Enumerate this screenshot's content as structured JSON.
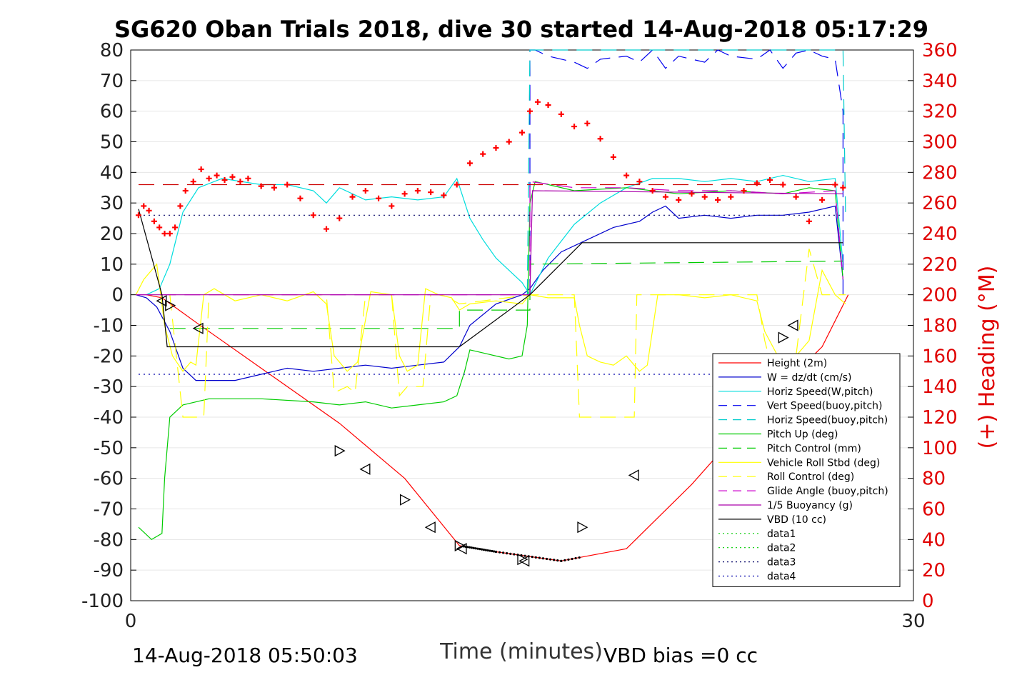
{
  "chart_data": {
    "type": "line",
    "title": "SG620 Oban Trials 2018, dive 30 started 14-Aug-2018 05:17:29",
    "xlabel": "Time (minutes)",
    "ylabel_right": "(+) Heading (°M)",
    "footer_left": "14-Aug-2018 05:50:03",
    "footer_right": "VBD bias =0 cc",
    "xlim": [
      0,
      30
    ],
    "ylim": [
      -100,
      80
    ],
    "ylim_right": [
      0,
      360
    ],
    "x_ticks": [
      "0",
      "30"
    ],
    "y_ticks": [
      "80",
      "70",
      "60",
      "50",
      "40",
      "30",
      "20",
      "10",
      "0",
      "-10",
      "-20",
      "-30",
      "-40",
      "-50",
      "-60",
      "-70",
      "-80",
      "-90",
      "-100"
    ],
    "y_ticks_right": [
      "360",
      "340",
      "320",
      "300",
      "280",
      "260",
      "240",
      "220",
      "200",
      "180",
      "160",
      "140",
      "120",
      "100",
      "80",
      "60",
      "40",
      "20",
      "0"
    ],
    "grid": true,
    "legend_position": "bottom-right",
    "colors": {
      "height": "#ff0000",
      "w": "#0000cc",
      "horiz_w": "#00dddd",
      "vert_buoy": "#0000ee",
      "horiz_buoy": "#00cccc",
      "pitch": "#00cc00",
      "pitch_ctrl": "#00cc00",
      "roll": "#ffff00",
      "roll_ctrl": "#ffff00",
      "glide": "#cc00cc",
      "buoyancy": "#aa00aa",
      "vbd": "#000000",
      "data1": "#00cc00",
      "data2": "#00cc00",
      "data3": "#000066",
      "data4": "#0000aa",
      "heading": "#ff0000",
      "right_axis": "#e00000"
    },
    "legend": [
      {
        "key": "height",
        "label": "Height (2m)",
        "style": "solid"
      },
      {
        "key": "w",
        "label": "W = dz/dt (cm/s)",
        "style": "solid"
      },
      {
        "key": "horiz_w",
        "label": "Horiz Speed(W,pitch)",
        "style": "solid"
      },
      {
        "key": "vert_buoy",
        "label": "Vert Speed(buoy,pitch)",
        "style": "dashed"
      },
      {
        "key": "horiz_buoy",
        "label": "Horiz Speed(buoy,pitch)",
        "style": "dashed"
      },
      {
        "key": "pitch",
        "label": "Pitch Up (deg)",
        "style": "solid"
      },
      {
        "key": "pitch_ctrl",
        "label": "Pitch Control (mm)",
        "style": "dashed"
      },
      {
        "key": "roll",
        "label": "Vehicle Roll Stbd (deg)",
        "style": "solid"
      },
      {
        "key": "roll_ctrl",
        "label": "Roll Control (deg)",
        "style": "dashed"
      },
      {
        "key": "glide",
        "label": "Glide Angle (buoy,pitch)",
        "style": "dashed"
      },
      {
        "key": "buoyancy",
        "label": "1/5 Buoyancy (g)",
        "style": "solid"
      },
      {
        "key": "vbd",
        "label": "VBD (10 cc)",
        "style": "solid"
      },
      {
        "key": "data1",
        "label": "data1",
        "style": "dotted"
      },
      {
        "key": "data2",
        "label": "data2",
        "style": "dotted"
      },
      {
        "key": "data3",
        "label": "data3",
        "style": "dotted"
      },
      {
        "key": "data4",
        "label": "data4",
        "style": "dotted"
      }
    ],
    "series": [
      {
        "key": "height",
        "x": [
          0.6,
          1.2,
          2.5,
          5,
          8,
          10.5,
          12.6,
          14,
          16.5,
          19,
          21.5,
          24,
          26.5,
          27.5
        ],
        "y": [
          0,
          -1,
          -9,
          -24,
          -42,
          -60,
          -82,
          -84,
          -87,
          -83,
          -62,
          -38,
          -17,
          0
        ]
      },
      {
        "key": "w",
        "x": [
          0.2,
          0.6,
          1,
          1.5,
          2,
          2.5,
          4,
          5,
          6,
          7,
          8,
          9,
          10,
          11,
          12,
          12.6,
          13,
          14,
          15,
          15.3,
          15.8,
          16.5,
          17.5,
          18.5,
          19.5,
          20,
          20.5,
          21,
          22,
          23,
          24,
          25,
          26,
          27,
          27.3
        ],
        "y": [
          0,
          -1,
          -4,
          -12,
          -24,
          -28,
          -28,
          -26,
          -24,
          -25,
          -24,
          -23,
          -24,
          -23,
          -22,
          -17,
          -10,
          -3,
          0,
          2,
          8,
          14,
          18,
          22,
          24,
          27,
          29,
          25,
          26,
          25,
          26,
          26,
          27,
          29,
          5
        ]
      },
      {
        "key": "horiz_w",
        "x": [
          0.6,
          1.1,
          1.5,
          2,
          2.6,
          3.5,
          5,
          6,
          7,
          7.5,
          8,
          9,
          10,
          11,
          12,
          12.5,
          13,
          13.5,
          14,
          15,
          15.3,
          16,
          17,
          18,
          19,
          20,
          21,
          22,
          23,
          24,
          25,
          26,
          27,
          27.3
        ],
        "y": [
          0,
          2,
          10,
          27,
          35,
          38,
          36,
          36,
          34,
          30,
          35,
          31,
          32,
          31,
          32,
          38,
          25,
          18,
          12,
          4,
          0,
          12,
          23,
          30,
          35,
          38,
          38,
          37,
          38,
          37,
          39,
          37,
          38,
          10
        ]
      },
      {
        "key": "vert_buoy",
        "x": [
          15.3,
          15.3,
          15.5,
          16,
          17,
          17.5,
          18,
          19,
          19.5,
          20,
          20.5,
          21,
          22,
          22.5,
          23,
          24,
          24.5,
          25,
          25.5,
          26,
          26.5,
          27,
          27.3,
          27.3
        ],
        "y": [
          0,
          80,
          80,
          78,
          76,
          74,
          77,
          78,
          76,
          80,
          74,
          78,
          76,
          80,
          78,
          77,
          80,
          74,
          79,
          80,
          78,
          77,
          60,
          0
        ],
        "dash": "22,12"
      },
      {
        "key": "horiz_buoy",
        "x": [
          15.2,
          15.3,
          15.35,
          27.3,
          27.4
        ],
        "y": [
          0,
          80,
          80,
          80,
          25
        ],
        "dash": "22,12"
      },
      {
        "key": "pitch",
        "x": [
          0.3,
          0.8,
          1.2,
          1.3,
          1.5,
          2,
          3,
          5,
          7,
          8,
          9,
          10,
          11,
          12,
          12.5,
          12.8,
          13,
          13.5,
          14.5,
          15,
          15.2,
          15.3,
          15.5,
          17,
          19,
          21,
          23,
          25,
          26,
          27,
          27.3
        ],
        "y": [
          -76,
          -80,
          -78,
          -60,
          -40,
          -36,
          -34,
          -34,
          -35,
          -36,
          -35,
          -37,
          -36,
          -35,
          -33,
          -25,
          -18,
          -19,
          -21,
          -20,
          -10,
          30,
          37,
          34,
          35,
          33,
          34,
          33,
          35,
          34,
          5
        ]
      },
      {
        "key": "pitch_ctrl",
        "x": [
          1.5,
          12.6,
          12.6,
          15.3,
          15.3,
          27.3
        ],
        "y": [
          -11,
          -11,
          -5,
          -5,
          10,
          11
        ],
        "dash": "22,12"
      },
      {
        "key": "roll",
        "x": [
          0.2,
          0.5,
          1,
          1.3,
          1.6,
          2,
          2.3,
          2.5,
          2.8,
          3.2,
          4,
          5,
          6,
          7,
          7.5,
          7.8,
          8.3,
          8.7,
          9.2,
          10,
          10.3,
          10.6,
          11,
          11.3,
          11.8,
          12.3,
          12.6,
          13,
          14,
          15,
          15.3,
          16,
          17,
          17.2,
          17.5,
          18,
          18.5,
          19,
          19.5,
          19.8,
          20.2,
          21,
          22,
          23,
          24,
          24.3,
          24.8,
          25,
          25.5,
          26,
          26.5,
          27,
          27.4
        ],
        "y": [
          0,
          5,
          10,
          -10,
          -20,
          -25,
          -22,
          -23,
          0,
          2,
          -2,
          0,
          -2,
          1,
          -3,
          -20,
          -25,
          -22,
          1,
          0,
          -20,
          -25,
          -23,
          2,
          0,
          -1,
          -5,
          -3,
          -2,
          -3,
          0,
          -1,
          -1,
          -10,
          -20,
          -22,
          -23,
          -20,
          -25,
          -23,
          0,
          0,
          -1,
          0,
          -2,
          -12,
          -20,
          -22,
          -20,
          -15,
          8,
          0,
          -3
        ]
      },
      {
        "key": "roll_ctrl",
        "x": [
          1.5,
          2,
          2.5,
          2.8,
          3,
          3.5,
          4,
          6,
          7.5,
          7.8,
          8.3,
          8.6,
          9,
          10,
          10.3,
          10.6,
          11.2,
          11.5,
          12,
          12.6,
          15.3,
          17,
          17.2,
          17.5,
          19.3,
          19.4,
          20,
          24,
          24.3,
          24.6,
          25,
          25.5,
          26,
          26.5,
          27.4
        ],
        "y": [
          0,
          -40,
          -40,
          -40,
          0,
          0,
          0,
          0,
          0,
          -32,
          -30,
          -32,
          0,
          0,
          -33,
          -30,
          -30,
          0,
          0,
          -3,
          0,
          0,
          -40,
          -40,
          -40,
          0,
          0,
          0,
          -15,
          -25,
          -20,
          -20,
          15,
          0,
          0
        ],
        "dash": "22,12"
      },
      {
        "key": "glide",
        "x": [
          0.2,
          15.3,
          15.3,
          17,
          19,
          21,
          23,
          25,
          27,
          27.3
        ],
        "y": [
          0,
          0,
          37,
          35,
          35,
          34,
          34,
          33,
          34,
          5
        ],
        "dash": "22,12"
      },
      {
        "key": "buoyancy",
        "x": [
          0.2,
          15.3,
          15.4,
          27.3
        ],
        "y": [
          0,
          0,
          34,
          33
        ]
      },
      {
        "key": "vbd",
        "x": [
          0.3,
          1.2,
          1.4,
          12.6,
          15.3,
          17.3,
          20,
          27.3
        ],
        "y": [
          28,
          0,
          -17,
          -17,
          0,
          17,
          17,
          17
        ]
      },
      {
        "key": "data3",
        "x": [
          0.3,
          27.3
        ],
        "y": [
          26,
          26
        ],
        "dash": "2,5"
      },
      {
        "key": "data4",
        "x": [
          0.3,
          27.3
        ],
        "y": [
          -26,
          -26
        ],
        "dash": "2,5"
      },
      {
        "key": "heading_ref",
        "x": [
          0.3,
          27.3
        ],
        "y": [
          36,
          36
        ],
        "dash": "22,12",
        "color": "#cc0000"
      }
    ],
    "heading_points": {
      "x": [
        0.3,
        0.5,
        0.7,
        0.9,
        1.1,
        1.3,
        1.5,
        1.7,
        1.9,
        2.1,
        2.4,
        2.7,
        3.0,
        3.3,
        3.6,
        3.9,
        4.2,
        4.5,
        5.0,
        5.5,
        6.0,
        6.5,
        7.0,
        7.5,
        8.0,
        8.5,
        9.0,
        9.5,
        10.0,
        10.5,
        11.0,
        11.5,
        12.0,
        12.5,
        13.0,
        13.5,
        14.0,
        14.5,
        15.0,
        15.3,
        15.6,
        16.0,
        16.5,
        17.0,
        17.5,
        18.0,
        18.5,
        19.0,
        19.5,
        20.0,
        20.5,
        21.0,
        21.5,
        22.0,
        22.5,
        23.0,
        23.5,
        24.0,
        24.5,
        25.0,
        25.5,
        26.0,
        26.5,
        27.0,
        27.3
      ],
      "y": [
        252,
        258,
        255,
        248,
        244,
        240,
        240,
        244,
        258,
        268,
        274,
        282,
        276,
        278,
        275,
        277,
        274,
        276,
        271,
        270,
        272,
        263,
        252,
        243,
        250,
        264,
        268,
        263,
        258,
        266,
        268,
        267,
        265,
        272,
        286,
        292,
        296,
        300,
        306,
        320,
        326,
        324,
        318,
        310,
        312,
        302,
        290,
        278,
        274,
        268,
        264,
        262,
        266,
        264,
        262,
        264,
        268,
        273,
        275,
        272,
        264,
        248,
        262,
        272,
        270
      ]
    },
    "profile_markers": {
      "x": [
        1.2,
        1.5,
        2.6,
        8.0,
        9.0,
        10.5,
        11.5,
        12.6,
        12.7,
        15.0,
        15.1,
        17.3,
        19.3,
        25.0,
        25.4
      ],
      "y": [
        -2,
        -3.5,
        -11,
        -51,
        -57,
        -67,
        -76,
        -82,
        -83,
        -86.5,
        -87,
        -76,
        -59,
        -14,
        -10
      ]
    },
    "profile_dots": {
      "x_start": 12.7,
      "x_end": 17.3
    }
  }
}
